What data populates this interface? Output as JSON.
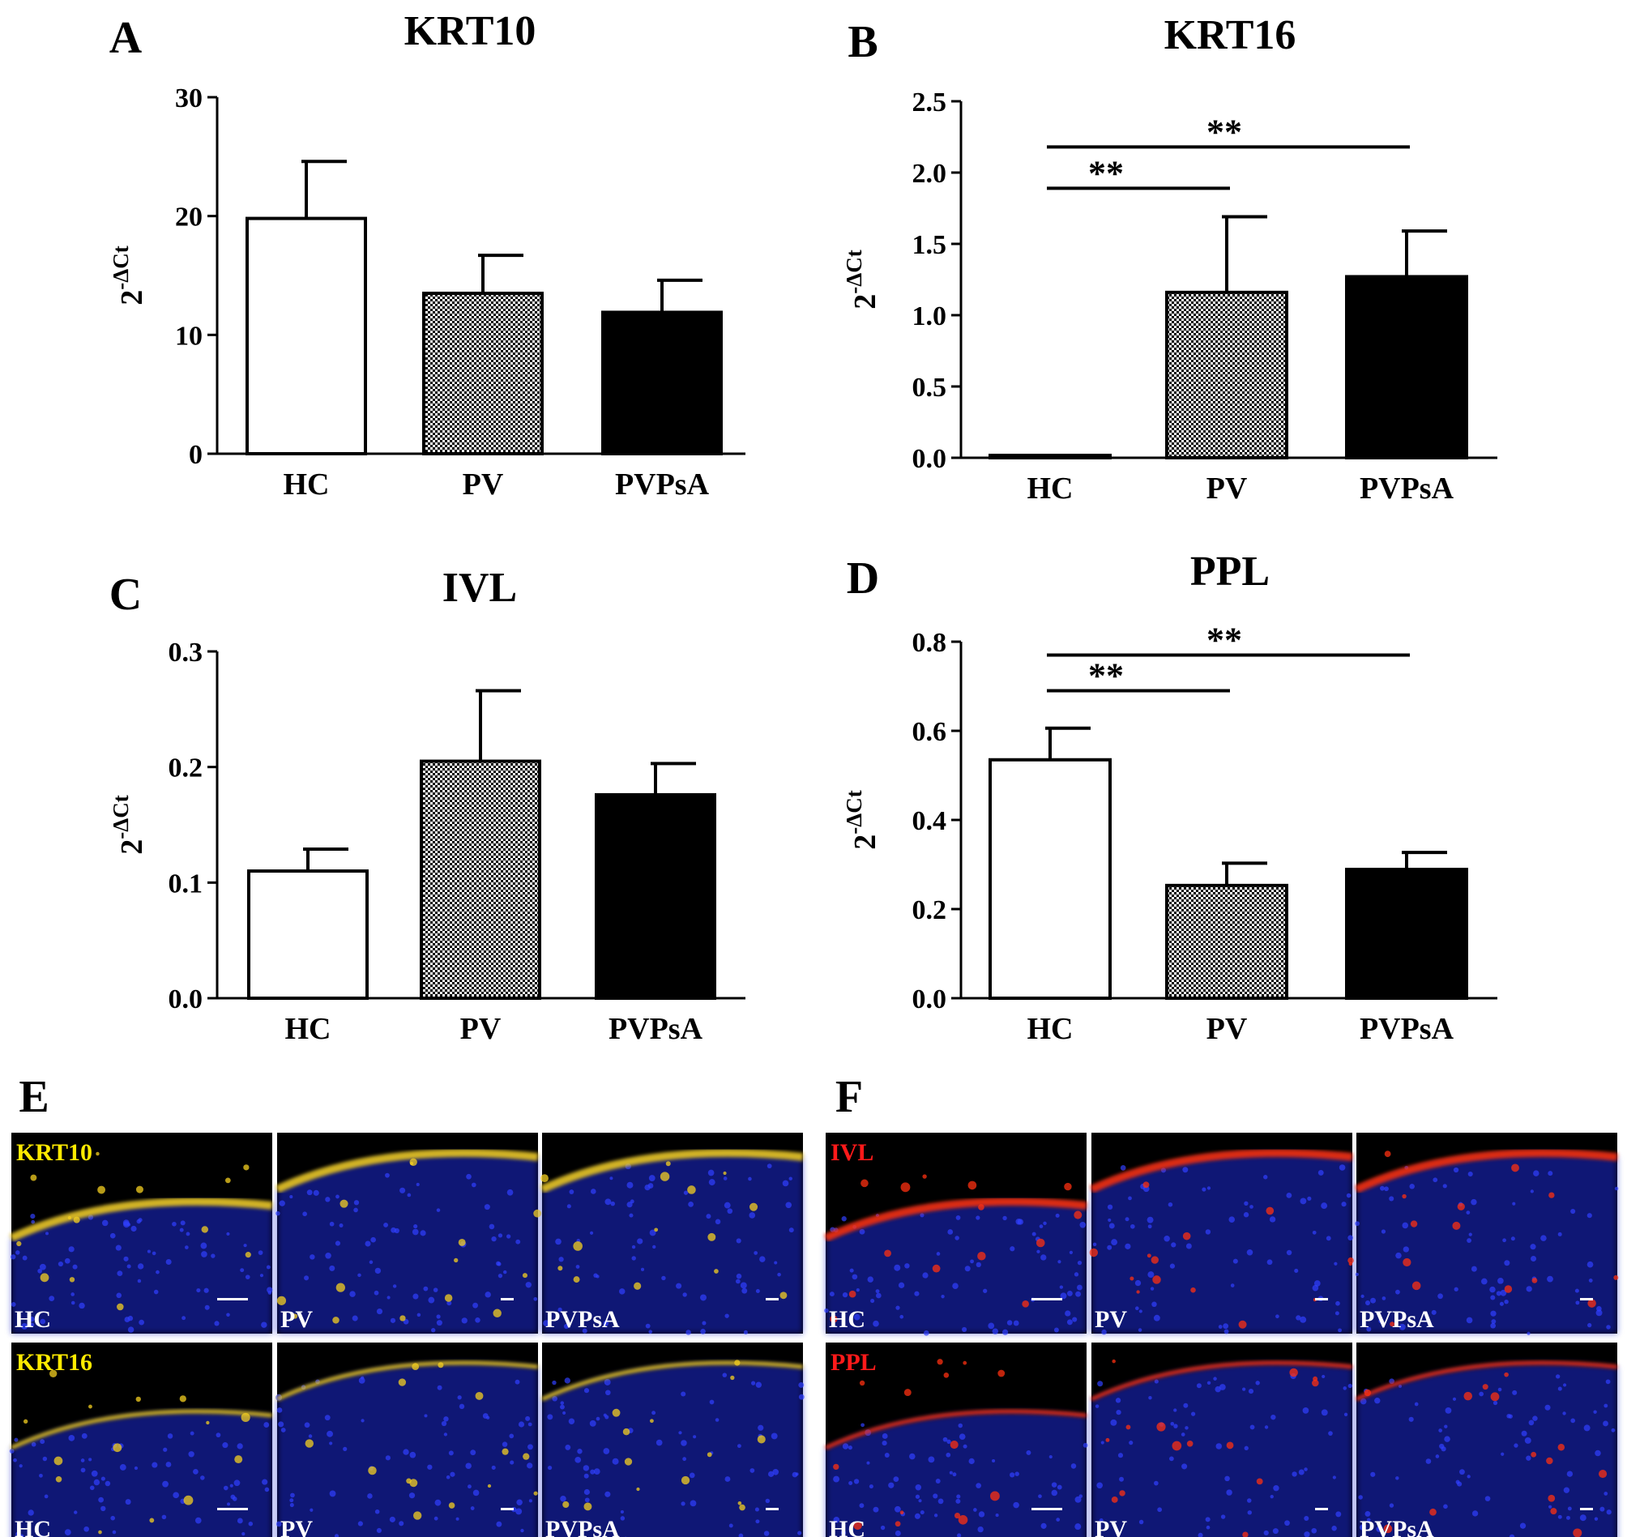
{
  "colors": {
    "axis": "#000000",
    "bar_hc": "#ffffff",
    "bar_pv_pattern": "checkerboard",
    "bar_pvpsa": "#000000",
    "krt_label": "#ffea00",
    "ivl_ppl_label": "#ff1a1a",
    "tile_label": "#ffffff",
    "tile_background": "#000000",
    "nuclei": "#1a2bd6",
    "yellow_stain": "#f5d020",
    "red_stain": "#ff3010"
  },
  "chart_data": [
    {
      "panel": "A",
      "type": "bar",
      "title": "KRT10",
      "ylabel": "2^-ΔCt",
      "ylabel_base": "2",
      "ylabel_sup": "-ΔCt",
      "categories": [
        "HC",
        "PV",
        "PVPsA"
      ],
      "values": [
        19.8,
        13.5,
        11.9
      ],
      "errors": [
        4.8,
        3.2,
        2.7
      ],
      "ylim": [
        0,
        30
      ],
      "yticks": [
        "0",
        "10",
        "20",
        "30"
      ],
      "ytick_values": [
        0,
        10,
        20,
        30
      ],
      "significance": []
    },
    {
      "panel": "B",
      "type": "bar",
      "title": "KRT16",
      "ylabel": "2^-ΔCt",
      "ylabel_base": "2",
      "ylabel_sup": "-ΔCt",
      "categories": [
        "HC",
        "PV",
        "PVPsA"
      ],
      "values": [
        0.01,
        1.16,
        1.27
      ],
      "errors": [
        0.0,
        0.53,
        0.32
      ],
      "ylim": [
        0,
        2.5
      ],
      "yticks": [
        "0.0",
        "0.5",
        "1.0",
        "1.5",
        "2.0",
        "2.5"
      ],
      "ytick_values": [
        0,
        0.5,
        1.0,
        1.5,
        2.0,
        2.5
      ],
      "significance": [
        {
          "from": 0,
          "to": 1,
          "level": 1.89,
          "label": "**"
        },
        {
          "from": 0,
          "to": 2,
          "level": 2.18,
          "label": "**"
        }
      ]
    },
    {
      "panel": "C",
      "type": "bar",
      "title": "IVL",
      "ylabel": "2^-ΔCt",
      "ylabel_base": "2",
      "ylabel_sup": "-ΔCt",
      "categories": [
        "HC",
        "PV",
        "PVPsA"
      ],
      "values": [
        0.11,
        0.205,
        0.176
      ],
      "errors": [
        0.019,
        0.061,
        0.027
      ],
      "ylim": [
        0,
        0.3
      ],
      "yticks": [
        "0.0",
        "0.1",
        "0.2",
        "0.3"
      ],
      "ytick_values": [
        0,
        0.1,
        0.2,
        0.3
      ],
      "significance": []
    },
    {
      "panel": "D",
      "type": "bar",
      "title": "PPL",
      "ylabel": "2^-ΔCt",
      "ylabel_base": "2",
      "ylabel_sup": "-ΔCt",
      "categories": [
        "HC",
        "PV",
        "PVPsA"
      ],
      "values": [
        0.535,
        0.253,
        0.289
      ],
      "errors": [
        0.071,
        0.05,
        0.038
      ],
      "ylim": [
        0,
        0.8
      ],
      "yticks": [
        "0.0",
        "0.2",
        "0.4",
        "0.6",
        "0.8"
      ],
      "ytick_values": [
        0,
        0.2,
        0.4,
        0.6,
        0.8
      ],
      "significance": [
        {
          "from": 0,
          "to": 1,
          "level": 0.69,
          "label": "**"
        },
        {
          "from": 0,
          "to": 2,
          "level": 0.77,
          "label": "**"
        }
      ]
    }
  ],
  "micrographs": [
    {
      "panel": "E",
      "stain": "yellow",
      "rows": [
        {
          "marker": "KRT10",
          "tiles": [
            "HC",
            "PV",
            "PVPsA"
          ]
        },
        {
          "marker": "KRT16",
          "tiles": [
            "HC",
            "PV",
            "PVPsA"
          ]
        }
      ]
    },
    {
      "panel": "F",
      "stain": "red",
      "rows": [
        {
          "marker": "IVL",
          "tiles": [
            "HC",
            "PV",
            "PVPsA"
          ]
        },
        {
          "marker": "PPL",
          "tiles": [
            "HC",
            "PV",
            "PVPsA"
          ]
        }
      ]
    }
  ]
}
